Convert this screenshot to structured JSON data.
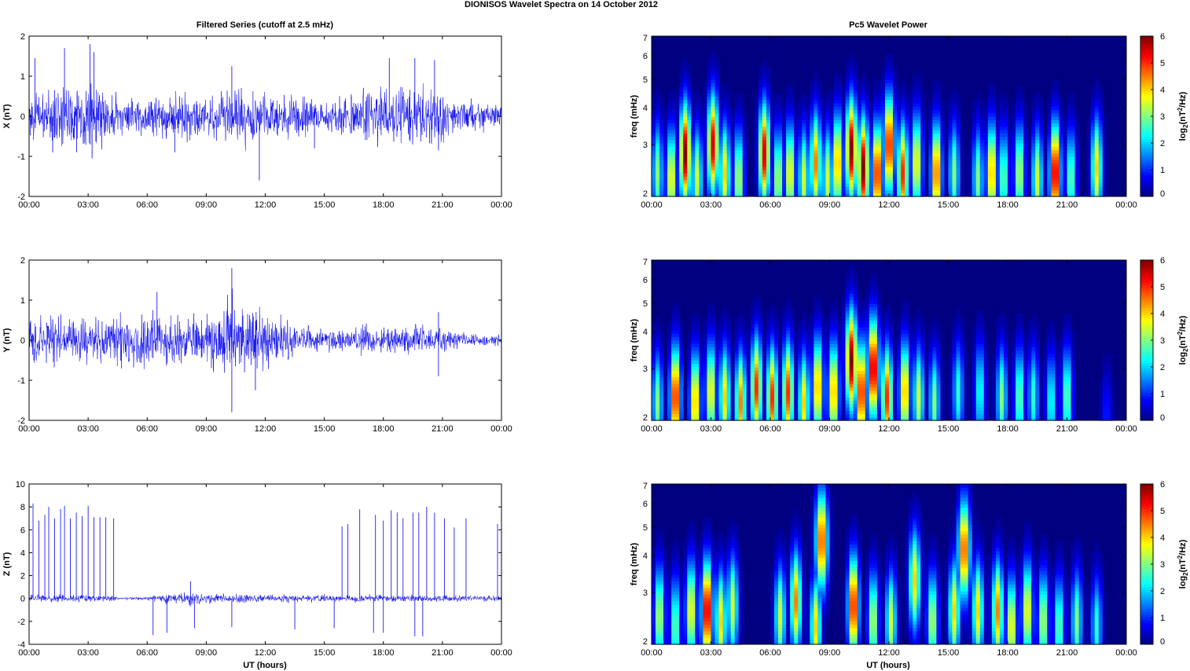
{
  "figure_title": "DIONISOS Wavelet Spectra on 14 October   2012",
  "left_title": "Filtered Series (cutoff at 2.5 mHz)",
  "right_title": "Pc5 Wavelet Power",
  "x_label": "UT (hours)",
  "x_ticks": [
    "00:00",
    "03:00",
    "06:00",
    "09:00",
    "12:00",
    "15:00",
    "18:00",
    "21:00",
    "00:00"
  ],
  "freq_label": "freq (mHz)",
  "freq_ticks": [
    "2",
    "3",
    "4",
    "5",
    "6",
    "7"
  ],
  "colorbar_label_base": "log",
  "colorbar_label_sub": "2",
  "colorbar_label_paren": "(nT",
  "colorbar_label_sup": "2",
  "colorbar_label_tail": "/Hz)",
  "colorbar_ticks": [
    "0",
    "1",
    "2",
    "3",
    "4",
    "5",
    "6"
  ],
  "colors": {
    "trace": "#0000ee",
    "colormap": "jet"
  },
  "chart_data": [
    {
      "type": "line",
      "title": "Filtered Series (cutoff at 2.5 mHz)",
      "ylabel": "X (nT)",
      "xlabel": "",
      "xlim": [
        "00:00",
        "24:00"
      ],
      "ylim": [
        -2,
        2
      ],
      "yticks": [
        "-2",
        "-1",
        "0",
        "1",
        "2"
      ],
      "activity": [
        [
          0,
          0.45
        ],
        [
          1,
          0.7
        ],
        [
          2,
          0.9
        ],
        [
          3,
          1.0
        ],
        [
          4,
          0.6
        ],
        [
          5,
          0.4
        ],
        [
          6,
          0.5
        ],
        [
          7,
          0.5
        ],
        [
          8,
          0.6
        ],
        [
          9,
          0.5
        ],
        [
          10,
          0.7
        ],
        [
          11,
          0.8
        ],
        [
          12,
          0.6
        ],
        [
          13,
          0.5
        ],
        [
          14,
          0.5
        ],
        [
          15,
          0.4
        ],
        [
          16,
          0.6
        ],
        [
          17,
          0.7
        ],
        [
          18,
          0.8
        ],
        [
          19,
          0.8
        ],
        [
          20,
          0.8
        ],
        [
          21,
          0.6
        ],
        [
          22,
          0.4
        ],
        [
          23,
          0.35
        ],
        [
          24,
          0.3
        ]
      ],
      "spikes": [
        [
          0.3,
          1.45
        ],
        [
          1.8,
          1.7
        ],
        [
          3.1,
          1.8
        ],
        [
          3.3,
          1.6
        ],
        [
          10.3,
          1.25
        ],
        [
          11.7,
          -1.6
        ],
        [
          18.3,
          1.45
        ],
        [
          19.6,
          1.45
        ],
        [
          20.6,
          1.4
        ],
        [
          1.2,
          -0.9
        ],
        [
          3.2,
          -1.05
        ],
        [
          7.4,
          -0.9
        ],
        [
          14.5,
          -0.8
        ],
        [
          20.8,
          -0.85
        ]
      ]
    },
    {
      "type": "line",
      "title": "",
      "ylabel": "Y (nT)",
      "xlabel": "",
      "xlim": [
        "00:00",
        "24:00"
      ],
      "ylim": [
        -2,
        2
      ],
      "yticks": [
        "-2",
        "-1",
        "0",
        "1",
        "2"
      ],
      "activity": [
        [
          0,
          0.55
        ],
        [
          1,
          0.6
        ],
        [
          2,
          0.6
        ],
        [
          3,
          0.55
        ],
        [
          4,
          0.6
        ],
        [
          5,
          0.6
        ],
        [
          6,
          0.7
        ],
        [
          7,
          0.65
        ],
        [
          8,
          0.6
        ],
        [
          9,
          0.7
        ],
        [
          10,
          1.1
        ],
        [
          11,
          0.9
        ],
        [
          12,
          0.7
        ],
        [
          13,
          0.5
        ],
        [
          14,
          0.4
        ],
        [
          15,
          0.3
        ],
        [
          16,
          0.3
        ],
        [
          17,
          0.35
        ],
        [
          18,
          0.35
        ],
        [
          19,
          0.4
        ],
        [
          20,
          0.4
        ],
        [
          21,
          0.3
        ],
        [
          22,
          0.2
        ],
        [
          23,
          0.15
        ],
        [
          24,
          0.15
        ]
      ],
      "spikes": [
        [
          10.3,
          1.8
        ],
        [
          10.3,
          -1.8
        ],
        [
          11.5,
          -1.25
        ],
        [
          20.8,
          0.7
        ],
        [
          20.8,
          -0.9
        ],
        [
          6.5,
          1.2
        ]
      ]
    },
    {
      "type": "line",
      "title": "",
      "ylabel": "Z (nT)",
      "xlabel": "UT (hours)",
      "xlim": [
        "00:00",
        "24:00"
      ],
      "ylim": [
        -4,
        10
      ],
      "yticks": [
        "-4",
        "-2",
        "0",
        "2",
        "4",
        "6",
        "8",
        "10"
      ],
      "activity": [
        [
          0,
          0.3
        ],
        [
          4.4,
          0.3
        ],
        [
          4.6,
          0.1
        ],
        [
          6.2,
          0.2
        ],
        [
          7,
          0.5
        ],
        [
          8,
          0.6
        ],
        [
          9,
          0.5
        ],
        [
          10,
          0.4
        ],
        [
          12,
          0.35
        ],
        [
          14,
          0.3
        ],
        [
          16,
          0.3
        ],
        [
          18,
          0.3
        ],
        [
          20,
          0.3
        ],
        [
          22,
          0.25
        ],
        [
          24,
          0.25
        ]
      ],
      "spikes": [
        [
          0.2,
          8.3
        ],
        [
          0.5,
          6.8
        ],
        [
          0.8,
          7.3
        ],
        [
          1.0,
          8.0
        ],
        [
          1.3,
          7.0
        ],
        [
          1.6,
          7.8
        ],
        [
          1.8,
          8.1
        ],
        [
          2.1,
          7.0
        ],
        [
          2.4,
          7.5
        ],
        [
          2.7,
          7.2
        ],
        [
          3.0,
          8.1
        ],
        [
          3.3,
          7.1
        ],
        [
          3.6,
          7.1
        ],
        [
          3.9,
          7.1
        ],
        [
          4.3,
          7.0
        ],
        [
          15.9,
          6.3
        ],
        [
          16.2,
          6.5
        ],
        [
          16.8,
          7.8
        ],
        [
          17.6,
          7.3
        ],
        [
          18.0,
          6.8
        ],
        [
          18.4,
          7.7
        ],
        [
          18.7,
          7.5
        ],
        [
          19.0,
          7.0
        ],
        [
          19.5,
          7.5
        ],
        [
          19.8,
          7.5
        ],
        [
          20.2,
          8.0
        ],
        [
          20.6,
          7.5
        ],
        [
          21.1,
          7.0
        ],
        [
          21.6,
          6.2
        ],
        [
          22.2,
          7.0
        ],
        [
          23.8,
          6.5
        ],
        [
          6.3,
          -3.2
        ],
        [
          7.0,
          -3.0
        ],
        [
          8.4,
          -2.6
        ],
        [
          10.3,
          -2.5
        ],
        [
          13.5,
          -2.7
        ],
        [
          15.5,
          -2.6
        ],
        [
          17.5,
          -3.0
        ],
        [
          18.0,
          -3.0
        ],
        [
          19.6,
          -3.3
        ],
        [
          20.0,
          -3.3
        ],
        [
          8.2,
          1.5
        ]
      ]
    },
    {
      "type": "heatmap",
      "title": "Pc5 Wavelet Power",
      "ylabel": "freq (mHz)",
      "xlabel": "",
      "xlim": [
        "00:00",
        "24:00"
      ],
      "ylim": [
        2,
        7
      ],
      "y_scale": "log",
      "colorbar": {
        "label": "log2(nT^2/Hz)",
        "range": [
          0,
          6
        ]
      },
      "blobs": [
        [
          0.3,
          2.4,
          3.0
        ],
        [
          1.0,
          2.3,
          4.0
        ],
        [
          1.7,
          2.8,
          6.0
        ],
        [
          2.3,
          2.3,
          3.5
        ],
        [
          3.1,
          3.0,
          5.5
        ],
        [
          3.7,
          2.4,
          4.0
        ],
        [
          4.4,
          2.3,
          3.5
        ],
        [
          5.7,
          2.8,
          5.5
        ],
        [
          6.4,
          2.3,
          3.5
        ],
        [
          7.0,
          2.4,
          4.0
        ],
        [
          7.7,
          2.3,
          3.5
        ],
        [
          8.3,
          2.6,
          4.5
        ],
        [
          8.9,
          2.3,
          3.5
        ],
        [
          9.4,
          2.6,
          4.5
        ],
        [
          10.1,
          2.9,
          6.0
        ],
        [
          10.7,
          2.5,
          6.0
        ],
        [
          11.4,
          2.4,
          5.5
        ],
        [
          12.0,
          3.0,
          5.5
        ],
        [
          12.7,
          2.4,
          5.0
        ],
        [
          13.4,
          2.6,
          4.0
        ],
        [
          14.4,
          2.4,
          5.0
        ],
        [
          15.3,
          2.4,
          3.0
        ],
        [
          16.5,
          2.3,
          3.0
        ],
        [
          17.2,
          2.4,
          4.5
        ],
        [
          17.8,
          2.3,
          3.0
        ],
        [
          18.6,
          2.4,
          3.5
        ],
        [
          19.5,
          2.3,
          3.5
        ],
        [
          20.4,
          2.4,
          6.0
        ],
        [
          21.2,
          2.3,
          3.0
        ],
        [
          22.5,
          2.5,
          4.0
        ]
      ]
    },
    {
      "type": "heatmap",
      "title": "",
      "ylabel": "freq (mHz)",
      "xlabel": "",
      "xlim": [
        "00:00",
        "24:00"
      ],
      "ylim": [
        2,
        7
      ],
      "y_scale": "log",
      "colorbar": {
        "label": "log2(nT^2/Hz)",
        "range": [
          0,
          6
        ]
      },
      "blobs": [
        [
          0.3,
          2.3,
          3.0
        ],
        [
          1.2,
          2.4,
          5.5
        ],
        [
          2.2,
          2.3,
          4.5
        ],
        [
          3.0,
          2.5,
          4.0
        ],
        [
          3.7,
          2.4,
          4.0
        ],
        [
          4.5,
          2.3,
          4.5
        ],
        [
          5.3,
          2.6,
          5.0
        ],
        [
          6.1,
          2.4,
          5.0
        ],
        [
          6.9,
          2.5,
          5.0
        ],
        [
          7.7,
          2.3,
          4.0
        ],
        [
          8.4,
          2.6,
          4.5
        ],
        [
          9.2,
          2.5,
          4.5
        ],
        [
          10.1,
          3.2,
          6.0
        ],
        [
          10.6,
          2.5,
          5.5
        ],
        [
          11.2,
          3.0,
          6.0
        ],
        [
          11.9,
          2.4,
          5.0
        ],
        [
          12.8,
          2.5,
          4.5
        ],
        [
          13.5,
          2.4,
          3.5
        ],
        [
          14.3,
          2.3,
          3.0
        ],
        [
          15.5,
          2.5,
          2.5
        ],
        [
          16.6,
          2.5,
          2.5
        ],
        [
          17.7,
          2.4,
          3.0
        ],
        [
          18.6,
          2.4,
          3.0
        ],
        [
          19.3,
          2.4,
          2.5
        ],
        [
          20.2,
          2.3,
          2.5
        ],
        [
          21.0,
          2.4,
          3.0
        ],
        [
          23.0,
          2.0,
          1.0
        ]
      ]
    },
    {
      "type": "heatmap",
      "title": "",
      "ylabel": "freq (mHz)",
      "xlabel": "UT (hours)",
      "xlim": [
        "00:00",
        "24:00"
      ],
      "ylim": [
        2,
        7
      ],
      "y_scale": "log",
      "colorbar": {
        "label": "log2(nT^2/Hz)",
        "range": [
          0,
          6
        ]
      },
      "blobs": [
        [
          0.4,
          2.5,
          3.5
        ],
        [
          1.2,
          2.3,
          3.0
        ],
        [
          2.0,
          2.6,
          4.0
        ],
        [
          2.8,
          2.6,
          6.0
        ],
        [
          3.5,
          2.4,
          4.0
        ],
        [
          4.1,
          2.7,
          3.5
        ],
        [
          6.5,
          2.5,
          3.5
        ],
        [
          7.3,
          2.8,
          4.5
        ],
        [
          8.3,
          2.3,
          4.0
        ],
        [
          8.6,
          4.5,
          5.0
        ],
        [
          10.2,
          2.7,
          5.5
        ],
        [
          11.2,
          2.4,
          3.5
        ],
        [
          12.1,
          2.4,
          3.5
        ],
        [
          13.3,
          3.3,
          4.0
        ],
        [
          14.2,
          2.4,
          3.5
        ],
        [
          15.3,
          2.6,
          4.0
        ],
        [
          15.8,
          4.2,
          5.0
        ],
        [
          16.5,
          2.6,
          4.0
        ],
        [
          17.5,
          2.6,
          4.5
        ],
        [
          18.2,
          2.3,
          4.0
        ],
        [
          19.0,
          2.6,
          4.0
        ],
        [
          19.8,
          2.4,
          3.5
        ],
        [
          20.6,
          2.3,
          3.0
        ],
        [
          21.5,
          2.4,
          3.0
        ],
        [
          22.5,
          2.3,
          2.5
        ]
      ]
    }
  ]
}
